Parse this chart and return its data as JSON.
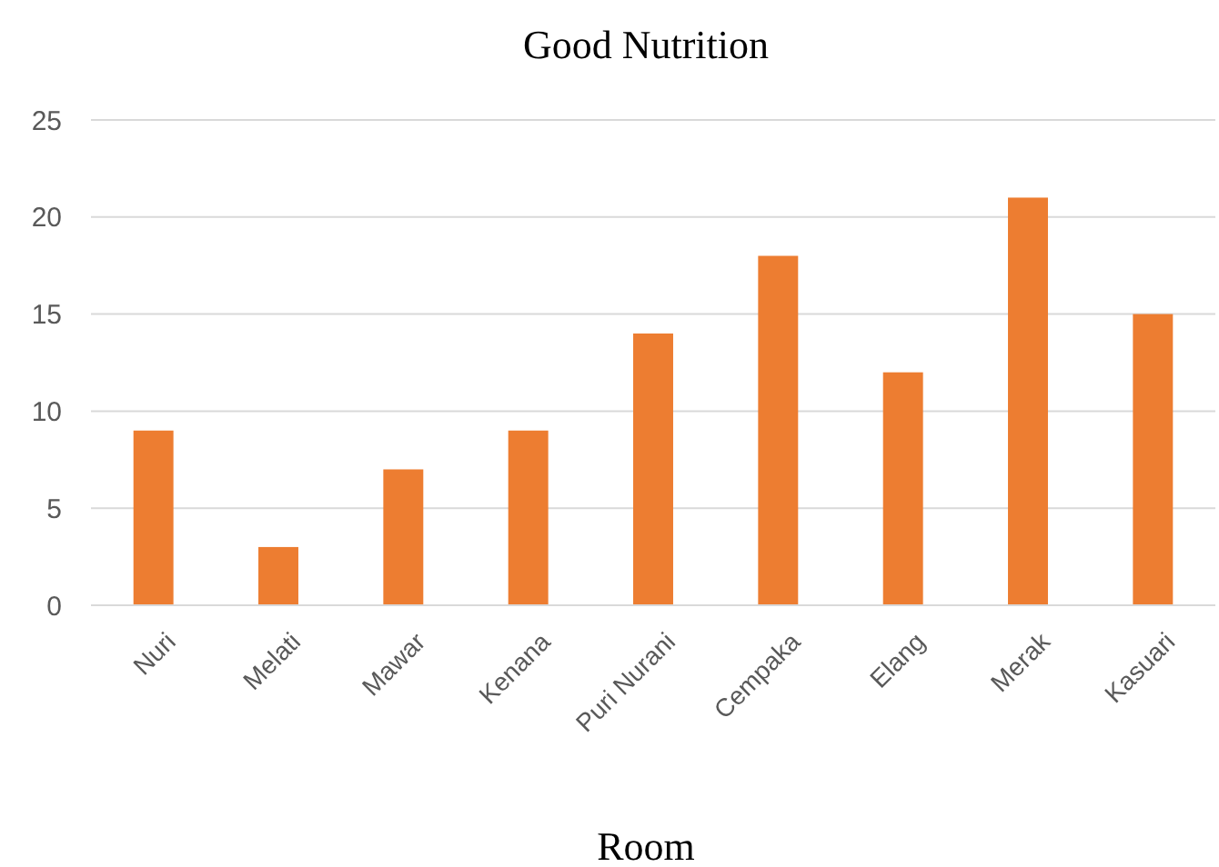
{
  "chart_data": {
    "type": "bar",
    "title": "Good Nutrition",
    "xlabel": "Room",
    "categories": [
      "Nuri",
      "Melati",
      "Mawar",
      "Kenana",
      "Puri Nurani",
      "Cempaka",
      "Elang",
      "Merak",
      "Kasuari"
    ],
    "values": [
      9,
      3,
      7,
      9,
      14,
      18,
      12,
      21,
      15
    ],
    "color": "#ed7d31",
    "ylim": [
      0,
      25
    ],
    "yticks": [
      0,
      5,
      10,
      15,
      20,
      25
    ],
    "grid": "y"
  }
}
